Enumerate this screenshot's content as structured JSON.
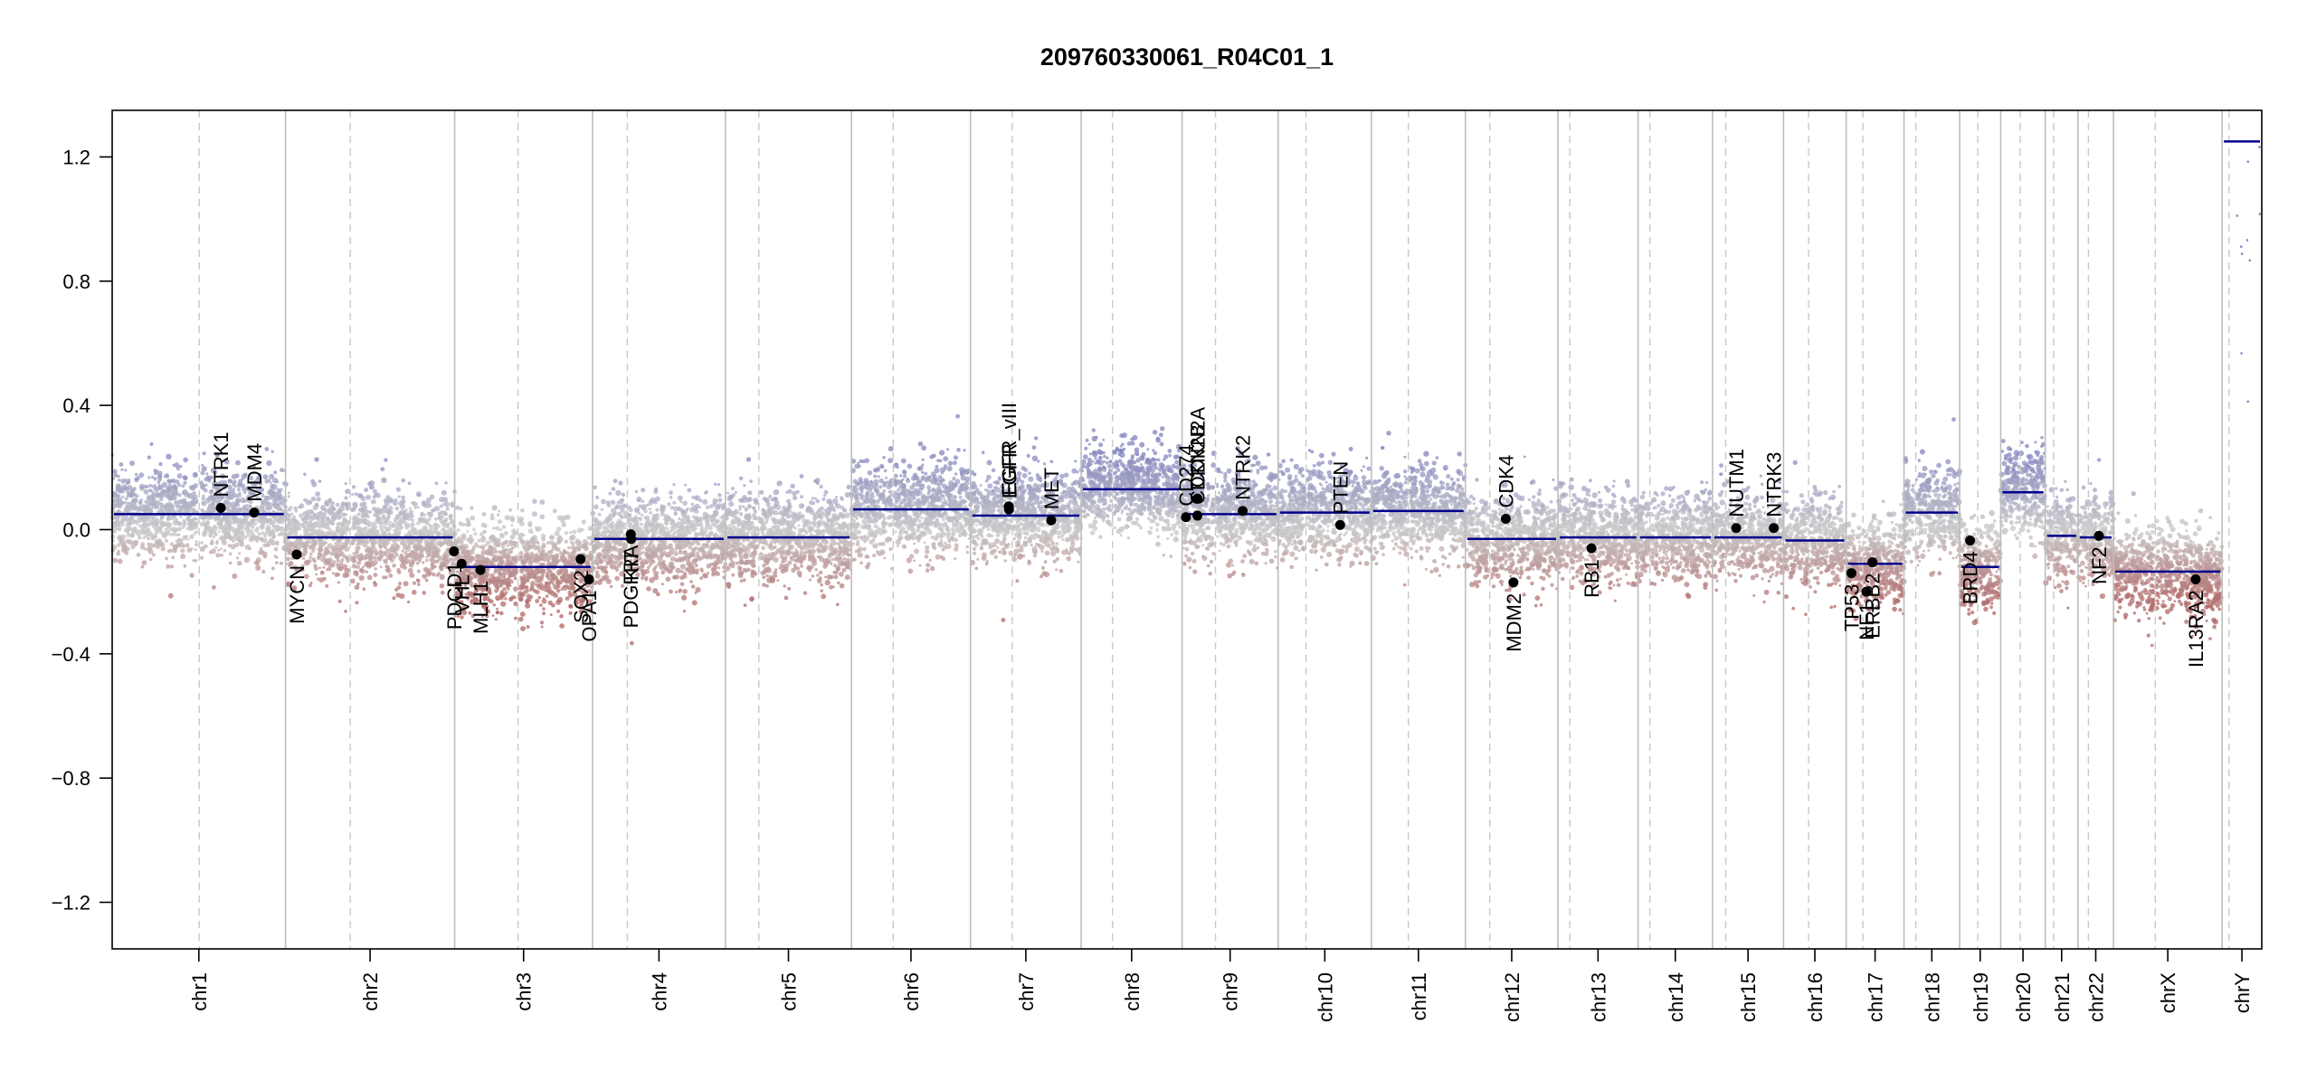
{
  "chart_data": {
    "type": "scatter",
    "title": "209760330061_R04C01_1",
    "xlabel": "",
    "ylabel": "",
    "ylim": [
      -1.35,
      1.35
    ],
    "yticks": [
      -1.2,
      -0.8,
      -0.4,
      0.0,
      0.4,
      0.8,
      1.2
    ],
    "ytick_labels": [
      "−1.2",
      "−0.8",
      "−0.4",
      "0.0",
      "0.4",
      "0.8",
      "1.2"
    ],
    "grid": false,
    "legend": "none",
    "colors": {
      "gain": "#8a8cc0",
      "neutral": "#c8c8c8",
      "loss": "#b06a6a",
      "segment": "#00008b",
      "gene_point": "#000000",
      "chrom_boundary": "#bdbdbd",
      "centromere": "#c8c8c8"
    },
    "chromosomes": [
      {
        "name": "chr1",
        "len": 249,
        "cent": 125,
        "seg_left": 0.05,
        "seg_right": 0.05,
        "cent_gap": false
      },
      {
        "name": "chr2",
        "len": 243,
        "cent": 93,
        "seg_left": -0.025,
        "seg_right": -0.025
      },
      {
        "name": "chr3",
        "len": 198,
        "cent": 91,
        "seg_left": -0.12,
        "seg_right": -0.12
      },
      {
        "name": "chr4",
        "len": 191,
        "cent": 50,
        "seg_left": -0.03,
        "seg_right": -0.03
      },
      {
        "name": "chr5",
        "len": 181,
        "cent": 48,
        "seg_left": -0.025,
        "seg_right": -0.025
      },
      {
        "name": "chr6",
        "len": 171,
        "cent": 60,
        "seg_left": 0.065,
        "seg_right": 0.065
      },
      {
        "name": "chr7",
        "len": 159,
        "cent": 60,
        "seg_left": 0.045,
        "seg_right": 0.045
      },
      {
        "name": "chr8",
        "len": 145,
        "cent": 45,
        "seg_left": 0.13,
        "seg_right": 0.13
      },
      {
        "name": "chr9",
        "len": 138,
        "cent": 48,
        "seg_left": 0.05,
        "seg_right": 0.05
      },
      {
        "name": "chr10",
        "len": 134,
        "cent": 40,
        "seg_left": 0.055,
        "seg_right": 0.055
      },
      {
        "name": "chr11",
        "len": 135,
        "cent": 53,
        "seg_left": 0.06,
        "seg_right": 0.06
      },
      {
        "name": "chr12",
        "len": 133,
        "cent": 35,
        "seg_left": -0.03,
        "seg_right": -0.03
      },
      {
        "name": "chr13",
        "len": 115,
        "cent": 17,
        "seg_left": -0.025,
        "seg_right": -0.025
      },
      {
        "name": "chr14",
        "len": 107,
        "cent": 17,
        "seg_left": -0.025,
        "seg_right": -0.025
      },
      {
        "name": "chr15",
        "len": 102,
        "cent": 19,
        "seg_left": -0.025,
        "seg_right": -0.025
      },
      {
        "name": "chr16",
        "len": 90,
        "cent": 36,
        "seg_left": -0.035,
        "seg_right": -0.035
      },
      {
        "name": "chr17",
        "len": 83,
        "cent": 24,
        "seg_left": -0.11,
        "seg_right": -0.11
      },
      {
        "name": "chr18",
        "len": 80,
        "cent": 17,
        "seg_left": 0.055,
        "seg_right": 0.055
      },
      {
        "name": "chr19",
        "len": 59,
        "cent": 26,
        "seg_left": -0.12,
        "seg_right": -0.12
      },
      {
        "name": "chr20",
        "len": 64,
        "cent": 28,
        "seg_left": 0.12,
        "seg_right": 0.12
      },
      {
        "name": "chr21",
        "len": 47,
        "cent": 12,
        "seg_left": -0.02,
        "seg_right": -0.02
      },
      {
        "name": "chr22",
        "len": 51,
        "cent": 15,
        "seg_left": -0.025,
        "seg_right": -0.025
      },
      {
        "name": "chrX",
        "len": 156,
        "cent": 60,
        "seg_left": -0.135,
        "seg_right": -0.135
      },
      {
        "name": "chrY",
        "len": 57,
        "cent": 10,
        "seg_left": 1.25,
        "seg_right": 1.25
      }
    ],
    "segments_extra": [
      {
        "chrom": "chr1",
        "start": 0,
        "end": 125,
        "value": 0.05
      },
      {
        "chrom": "chr1",
        "start": 125,
        "end": 249,
        "value": 0.05
      }
    ],
    "genes": [
      {
        "name": "NTRK1",
        "chrom": "chr1",
        "pos": 156,
        "value": 0.07,
        "label_side": "up"
      },
      {
        "name": "MDM4",
        "chrom": "chr1",
        "pos": 204,
        "value": 0.055,
        "label_side": "up"
      },
      {
        "name": "MYCN",
        "chrom": "chr2",
        "pos": 16,
        "value": -0.08,
        "label_side": "down"
      },
      {
        "name": "PDCD1",
        "chrom": "chr2",
        "pos": 242,
        "value": -0.07,
        "label_side": "down"
      },
      {
        "name": "VHL",
        "chrom": "chr3",
        "pos": 10,
        "value": -0.11,
        "label_side": "down"
      },
      {
        "name": "MLH1",
        "chrom": "chr3",
        "pos": 37,
        "value": -0.13,
        "label_side": "down"
      },
      {
        "name": "SOX2",
        "chrom": "chr3",
        "pos": 181,
        "value": -0.095,
        "label_side": "down"
      },
      {
        "name": "OPA1",
        "chrom": "chr3",
        "pos": 193,
        "value": -0.16,
        "label_side": "down"
      },
      {
        "name": "PDGFRA",
        "chrom": "chr4",
        "pos": 55,
        "value": -0.015,
        "label_side": "down"
      },
      {
        "name": "KIT",
        "chrom": "chr4",
        "pos": 55.5,
        "value": -0.03,
        "label_side": "down"
      },
      {
        "name": "EGFR_vIII",
        "chrom": "chr7",
        "pos": 55,
        "value": 0.075,
        "label_side": "up"
      },
      {
        "name": "EGFR",
        "chrom": "chr7",
        "pos": 55.3,
        "value": 0.065,
        "label_side": "up"
      },
      {
        "name": "MET",
        "chrom": "chr7",
        "pos": 116,
        "value": 0.03,
        "label_side": "up"
      },
      {
        "name": "CDKN2B",
        "chrom": "chr9",
        "pos": 22,
        "value": 0.045,
        "label_side": "up"
      },
      {
        "name": "CD274",
        "chrom": "chr9",
        "pos": 5.5,
        "value": 0.04,
        "label_side": "up"
      },
      {
        "name": "CDKN2A",
        "chrom": "chr9",
        "pos": 21.9,
        "value": 0.1,
        "label_side": "up"
      },
      {
        "name": "NTRK2",
        "chrom": "chr9",
        "pos": 87,
        "value": 0.06,
        "label_side": "up"
      },
      {
        "name": "PTEN",
        "chrom": "chr10",
        "pos": 89,
        "value": 0.015,
        "label_side": "up"
      },
      {
        "name": "CDK4",
        "chrom": "chr12",
        "pos": 58,
        "value": 0.035,
        "label_side": "up"
      },
      {
        "name": "MDM2",
        "chrom": "chr12",
        "pos": 69,
        "value": -0.17,
        "label_side": "down"
      },
      {
        "name": "RB1",
        "chrom": "chr13",
        "pos": 48,
        "value": -0.06,
        "label_side": "down"
      },
      {
        "name": "NUTM1",
        "chrom": "chr15",
        "pos": 34,
        "value": 0.005,
        "label_side": "up"
      },
      {
        "name": "NTRK3",
        "chrom": "chr15",
        "pos": 88,
        "value": 0.005,
        "label_side": "up"
      },
      {
        "name": "TP53",
        "chrom": "chr17",
        "pos": 7.5,
        "value": -0.14,
        "label_side": "down"
      },
      {
        "name": "NF1",
        "chrom": "chr17",
        "pos": 29,
        "value": -0.2,
        "label_side": "down"
      },
      {
        "name": "ERBB2",
        "chrom": "chr17",
        "pos": 37.8,
        "value": -0.105,
        "label_side": "down"
      },
      {
        "name": "BRD4",
        "chrom": "chr19",
        "pos": 15,
        "value": -0.035,
        "label_side": "down"
      },
      {
        "name": "NF2",
        "chrom": "chr22",
        "pos": 30,
        "value": -0.02,
        "label_side": "down"
      },
      {
        "name": "IL13RA2",
        "chrom": "chrX",
        "pos": 118,
        "value": -0.16,
        "label_side": "down"
      }
    ]
  }
}
